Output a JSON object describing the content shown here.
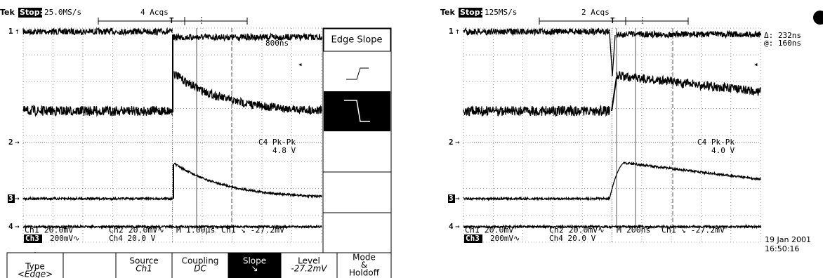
{
  "left_scope": {
    "header": {
      "brand": "Tek",
      "state": "Stop:",
      "rate": "25.0MS/s",
      "acqs": "4 Acqs"
    },
    "channel_markers": [
      "1",
      "2",
      "3",
      "4"
    ],
    "cursor_readout": "800ns",
    "measurement": {
      "label": "C4 Pk-Pk",
      "value": "4.8 V"
    },
    "status": {
      "row1": [
        "Ch1 20.0mV",
        "Ch2 20.0mV∿",
        "M 1.00µs",
        "Ch1 ↘ -27.2mV"
      ],
      "ch3": "Ch3",
      "row2": [
        "200mV∿",
        "Ch4  20.0 V"
      ]
    },
    "side_menu": {
      "title": "Edge Slope"
    },
    "buttons": [
      {
        "lines": [
          "Type",
          "<Edge>"
        ]
      },
      {
        "lines": [
          "Source",
          "Ch1"
        ]
      },
      {
        "lines": [
          "Coupling",
          "DC"
        ]
      },
      {
        "lines": [
          "Slope",
          "↘"
        ]
      },
      {
        "lines": [
          "Level",
          "-27.2mV"
        ]
      },
      {
        "lines": [
          "Mode",
          "&",
          "Holdoff"
        ]
      }
    ]
  },
  "right_scope": {
    "header": {
      "brand": "Tek",
      "state": "Stop:",
      "rate": "125MS/s",
      "acqs": "2 Acqs"
    },
    "channel_markers": [
      "1",
      "2",
      "3",
      "4"
    ],
    "cursor_readout": [
      "Δ: 232ns",
      "@: 160ns"
    ],
    "measurement": {
      "label": "C4 Pk-Pk",
      "value": "4.0 V"
    },
    "status": {
      "row1": [
        "Ch1 20.0mV",
        "Ch2 20.0mV∿",
        "M 200ns",
        "Ch1 ↘ -27.2mV"
      ],
      "ch3": "Ch3",
      "row2": [
        "200mV∿",
        "Ch4  20.0 V"
      ]
    },
    "timestamp": {
      "date": "19 Jan 2001",
      "time": "16:50:16"
    }
  }
}
